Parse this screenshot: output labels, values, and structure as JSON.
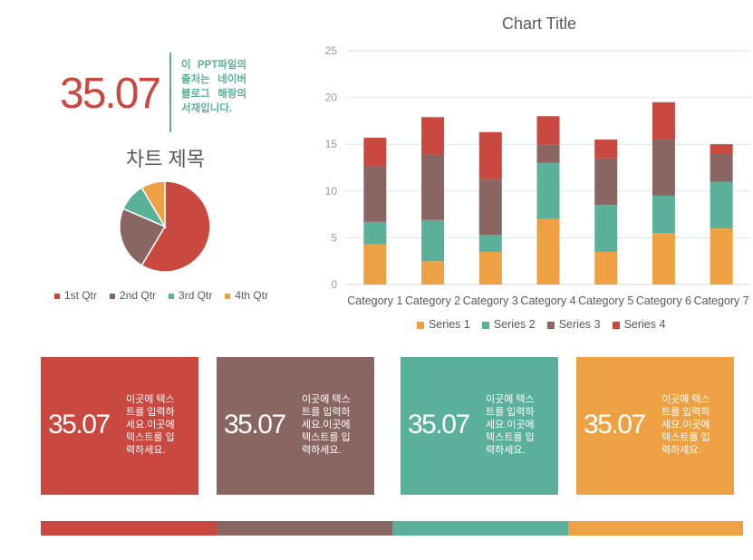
{
  "headline": {
    "value": "35.07",
    "note": "이 PPT파일의 출처는 네이버블로그 해랑의 서재입니다."
  },
  "colors": {
    "red": "#c9483f",
    "brown": "#8a6663",
    "teal": "#5bb09a",
    "orange": "#eda142"
  },
  "chart_data": [
    {
      "type": "pie",
      "title": "차트 제목",
      "categories": [
        "1st Qtr",
        "2nd Qtr",
        "3rd Qtr",
        "4th Qtr"
      ],
      "values": [
        8.2,
        3.2,
        1.4,
        1.2
      ],
      "colors": [
        "#c9483f",
        "#8a6663",
        "#5bb09a",
        "#eda142"
      ],
      "legend": "bottom"
    },
    {
      "type": "bar",
      "stacked": true,
      "title": "Chart Title",
      "categories": [
        "Category 1",
        "Category 2",
        "Category 3",
        "Category 4",
        "Category 5",
        "Category 6",
        "Category 7"
      ],
      "series": [
        {
          "name": "Series 1",
          "color": "#eda142",
          "values": [
            4.3,
            2.5,
            3.5,
            7.0,
            3.5,
            5.5,
            6.0
          ]
        },
        {
          "name": "Series 2",
          "color": "#5bb09a",
          "values": [
            2.4,
            4.4,
            1.8,
            6.0,
            5.0,
            4.0,
            5.0
          ]
        },
        {
          "name": "Series 3",
          "color": "#8a6663",
          "values": [
            6.0,
            7.0,
            6.0,
            2.0,
            5.0,
            6.0,
            3.0
          ]
        },
        {
          "name": "Series 4",
          "color": "#c9483f",
          "values": [
            3.0,
            4.0,
            5.0,
            3.0,
            2.0,
            4.0,
            1.0
          ]
        }
      ],
      "ylim": [
        0,
        25
      ],
      "yticks": [
        0,
        5,
        10,
        15,
        20,
        25
      ],
      "grid": true,
      "legend": "bottom"
    }
  ],
  "cards": [
    {
      "value": "35.07",
      "text": "이곳에 텍스트를 입력하세요.이곳에 텍스트를 입력하세요.",
      "color": "#c9483f"
    },
    {
      "value": "35.07",
      "text": "이곳에 텍스트를 입력하세요.이곳에 텍스트를 입력하세요.",
      "color": "#8a6663"
    },
    {
      "value": "35.07",
      "text": "이곳에 텍스트를 입력하세요.이곳에 텍스트를 입력하세요.",
      "color": "#5bb09a"
    },
    {
      "value": "35.07",
      "text": "이곳에 텍스트를 입력하세요.이곳에 텍스트를 입력하세요.",
      "color": "#eda142"
    }
  ]
}
